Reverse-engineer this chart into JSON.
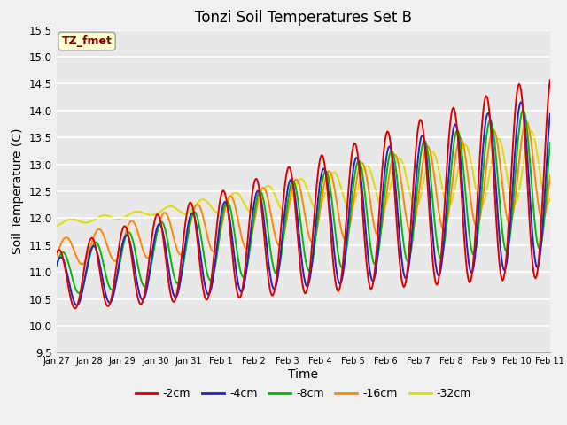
{
  "title": "Tonzi Soil Temperatures Set B",
  "xlabel": "Time",
  "ylabel": "Soil Temperature (C)",
  "ylim": [
    9.5,
    15.5
  ],
  "annotation": "TZ_fmet",
  "annotation_color": "#880000",
  "annotation_bg": "#ffffcc",
  "bg_color": "#e8e8e8",
  "fig_bg": "#f0f0f0",
  "colors": {
    "-2cm": "#dd0000",
    "-4cm": "#2222cc",
    "-8cm": "#00bb00",
    "-16cm": "#ff8800",
    "-32cm": "#dddd00"
  },
  "line_width": 1.4,
  "legend_labels": [
    "-2cm",
    "-4cm",
    "-8cm",
    "-16cm",
    "-32cm"
  ],
  "xtick_labels": [
    "Jan 27",
    "Jan 28",
    "Jan 29",
    "Jan 30",
    "Jan 31",
    "Feb 1",
    "Feb 2",
    "Feb 3",
    "Feb 4",
    "Feb 5",
    "Feb 6",
    "Feb 7",
    "Feb 8",
    "Feb 9",
    "Feb 10",
    "Feb 11"
  ],
  "xtick_positions": [
    0,
    1,
    2,
    3,
    4,
    5,
    6,
    7,
    8,
    9,
    10,
    11,
    12,
    13,
    14,
    15
  ],
  "ytick_positions": [
    9.5,
    10.0,
    10.5,
    11.0,
    11.5,
    12.0,
    12.5,
    13.0,
    13.5,
    14.0,
    14.5,
    15.0,
    15.5
  ],
  "n_points": 480
}
